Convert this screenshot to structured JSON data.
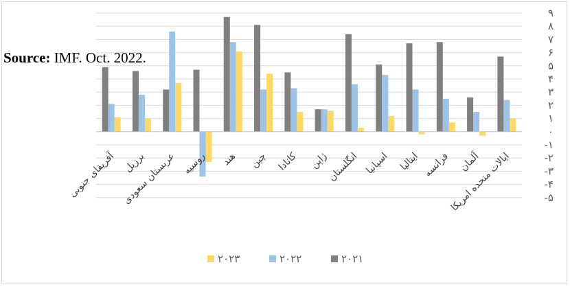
{
  "source": {
    "label": "Source:",
    "text": " IMF. Oct. 2022."
  },
  "chart_data": {
    "type": "bar",
    "title": "",
    "xlabel": "",
    "ylabel": "",
    "ylim": [
      -5,
      9
    ],
    "y_ticks": [
      {
        "value": 9,
        "label": "۹"
      },
      {
        "value": 8,
        "label": "۸"
      },
      {
        "value": 7,
        "label": "۷"
      },
      {
        "value": 6,
        "label": "۶"
      },
      {
        "value": 5,
        "label": "۵"
      },
      {
        "value": 4,
        "label": "۴"
      },
      {
        "value": 3,
        "label": "۳"
      },
      {
        "value": 2,
        "label": "۲"
      },
      {
        "value": 1,
        "label": "۱"
      },
      {
        "value": 0,
        "label": "۰"
      },
      {
        "value": -1,
        "label": "-۱"
      },
      {
        "value": -2,
        "label": "-۲"
      },
      {
        "value": -3,
        "label": "-۳"
      },
      {
        "value": -4,
        "label": "-۴"
      },
      {
        "value": -5,
        "label": "-۵"
      }
    ],
    "grid": true,
    "legend_position": "bottom",
    "categories": [
      "آفریقای جنوبی",
      "برزیل",
      "عربستان سعودی",
      "روسیه",
      "هند",
      "چین",
      "کانادا",
      "ژاپن",
      "انگلستان",
      "اسپانیا",
      "ایتالیا",
      "فرانسه",
      "آلمان",
      "ایالات متحده امریکا"
    ],
    "series": [
      {
        "name": "۲۰۲۱",
        "color": "#808080",
        "values": [
          4.9,
          4.6,
          3.2,
          4.7,
          8.7,
          8.1,
          4.5,
          1.7,
          7.4,
          5.1,
          6.7,
          6.8,
          2.6,
          5.7
        ]
      },
      {
        "name": "۲۰۲۲",
        "color": "#9dc3e6",
        "values": [
          2.1,
          2.8,
          7.6,
          -3.4,
          6.8,
          3.2,
          3.3,
          1.7,
          3.6,
          4.3,
          3.2,
          2.5,
          1.5,
          2.4
        ]
      },
      {
        "name": "۲۰۲۳",
        "color": "#ffd966",
        "values": [
          1.1,
          1.0,
          3.7,
          -2.3,
          6.1,
          4.4,
          1.5,
          1.6,
          0.3,
          1.2,
          -0.2,
          0.7,
          -0.3,
          1.0
        ]
      }
    ]
  }
}
